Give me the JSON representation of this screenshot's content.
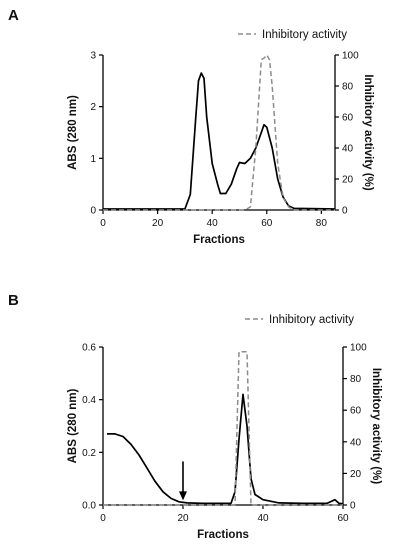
{
  "chart_data": [
    {
      "panel_label": "A",
      "type": "line",
      "xlabel": "Fractions",
      "ylabel_left": "ABS (280 nm)",
      "ylabel_right": "Inhibitory activity (%)",
      "xlim": [
        0,
        85
      ],
      "ylim_left": [
        0,
        3
      ],
      "ylim_right": [
        0,
        100
      ],
      "x_ticks": [
        0,
        20,
        40,
        60,
        80
      ],
      "y_left_ticks": [
        0,
        1,
        2,
        3
      ],
      "y_right_ticks": [
        0,
        20,
        40,
        60,
        80,
        100
      ],
      "legend_position": "top-right",
      "series": [
        {
          "axis": "left",
          "style": "solid",
          "color": "#000000",
          "points": [
            [
              0,
              0.02
            ],
            [
              30,
              0.02
            ],
            [
              32,
              0.3
            ],
            [
              34,
              1.8
            ],
            [
              35,
              2.5
            ],
            [
              36,
              2.65
            ],
            [
              37,
              2.55
            ],
            [
              38,
              1.8
            ],
            [
              40,
              0.9
            ],
            [
              42,
              0.5
            ],
            [
              43,
              0.32
            ],
            [
              45,
              0.32
            ],
            [
              47,
              0.5
            ],
            [
              49,
              0.8
            ],
            [
              50,
              0.92
            ],
            [
              52,
              0.9
            ],
            [
              54,
              1.0
            ],
            [
              56,
              1.2
            ],
            [
              58,
              1.5
            ],
            [
              59,
              1.65
            ],
            [
              60,
              1.6
            ],
            [
              62,
              1.2
            ],
            [
              64,
              0.6
            ],
            [
              66,
              0.25
            ],
            [
              68,
              0.08
            ],
            [
              70,
              0.03
            ],
            [
              85,
              0.02
            ]
          ]
        },
        {
          "name": "Inhibitory activity",
          "axis": "right",
          "style": "dashed",
          "color": "#8c8c8c",
          "points": [
            [
              0,
              0
            ],
            [
              52,
              0
            ],
            [
              54,
              2
            ],
            [
              56,
              40
            ],
            [
              58,
              97
            ],
            [
              59,
              98
            ],
            [
              60,
              100
            ],
            [
              61,
              97
            ],
            [
              62,
              80
            ],
            [
              64,
              30
            ],
            [
              66,
              8
            ],
            [
              68,
              2
            ],
            [
              70,
              0
            ],
            [
              85,
              0
            ]
          ]
        }
      ]
    },
    {
      "panel_label": "B",
      "type": "line",
      "xlabel": "Fractions",
      "ylabel_left": "ABS (280 nm)",
      "ylabel_right": "Inhibitory activity (%)",
      "xlim": [
        0,
        60
      ],
      "ylim_left": [
        0,
        0.6
      ],
      "ylim_right": [
        0,
        100
      ],
      "x_ticks": [
        0,
        20,
        40,
        60
      ],
      "y_left_ticks": [
        0.0,
        0.2,
        0.4,
        0.6
      ],
      "y_right_ticks": [
        0,
        20,
        40,
        60,
        80,
        100
      ],
      "y_left_tick_labels": [
        "0.0",
        "0.2",
        "0.4",
        "0.6"
      ],
      "legend_position": "top-right",
      "arrow_annotation_x": 20,
      "series": [
        {
          "axis": "left",
          "style": "solid",
          "color": "#000000",
          "points": [
            [
              1,
              0.27
            ],
            [
              3,
              0.27
            ],
            [
              5,
              0.26
            ],
            [
              7,
              0.23
            ],
            [
              9,
              0.19
            ],
            [
              11,
              0.14
            ],
            [
              13,
              0.09
            ],
            [
              15,
              0.05
            ],
            [
              17,
              0.025
            ],
            [
              19,
              0.012
            ],
            [
              21,
              0.008
            ],
            [
              25,
              0.006
            ],
            [
              30,
              0.006
            ],
            [
              32,
              0.006
            ],
            [
              33,
              0.05
            ],
            [
              34,
              0.25
            ],
            [
              35,
              0.42
            ],
            [
              36,
              0.3
            ],
            [
              37,
              0.1
            ],
            [
              38,
              0.04
            ],
            [
              40,
              0.02
            ],
            [
              44,
              0.008
            ],
            [
              50,
              0.006
            ],
            [
              56,
              0.006
            ],
            [
              58,
              0.02
            ],
            [
              59,
              0.006
            ],
            [
              60,
              0.005
            ]
          ]
        },
        {
          "name": "Inhibitory activity",
          "axis": "right",
          "style": "dashed",
          "color": "#8c8c8c",
          "points": [
            [
              0,
              0
            ],
            [
              33,
              0
            ],
            [
              34,
              97
            ],
            [
              35,
              97
            ],
            [
              36,
              97
            ],
            [
              37,
              0
            ],
            [
              60,
              0
            ]
          ]
        }
      ]
    }
  ]
}
